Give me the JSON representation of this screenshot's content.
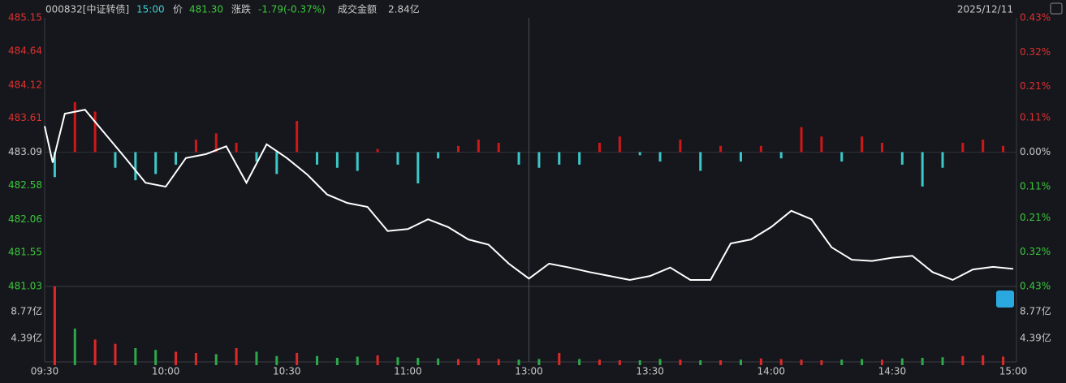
{
  "header": {
    "code": "000832[中证转债]",
    "time": "15:00",
    "price_label": "价",
    "price": "481.30",
    "change_label": "涨跌",
    "change": "-1.79(-0.37%)",
    "amount_label": "成交金额",
    "amount": "2.84亿",
    "date": "2025/12/11"
  },
  "chart_data": {
    "type": "line",
    "x": [
      0,
      2,
      5,
      10,
      15,
      20,
      25,
      30,
      35,
      40,
      45,
      50,
      55,
      60,
      65,
      70,
      75,
      80,
      85,
      90,
      95,
      100,
      105,
      110,
      115,
      120,
      125,
      130,
      135,
      140,
      145,
      150,
      155,
      160,
      165,
      170,
      175,
      180,
      185,
      190,
      195,
      200,
      205,
      210,
      215,
      220,
      225,
      230,
      235,
      240
    ],
    "series": [
      {
        "name": "价",
        "color": "#ffffff",
        "values": [
          483.49,
          482.93,
          483.68,
          483.74,
          483.37,
          483.0,
          482.62,
          482.56,
          483.0,
          483.06,
          483.18,
          482.62,
          483.21,
          483.0,
          482.75,
          482.44,
          482.31,
          482.25,
          481.88,
          481.91,
          482.06,
          481.94,
          481.75,
          481.67,
          481.38,
          481.15,
          481.38,
          481.32,
          481.25,
          481.19,
          481.13,
          481.19,
          481.32,
          481.13,
          481.13,
          481.69,
          481.75,
          481.94,
          482.19,
          482.06,
          481.63,
          481.44,
          481.42,
          481.47,
          481.5,
          481.25,
          481.13,
          481.29,
          481.33,
          481.3
        ]
      }
    ],
    "xlim": [
      0,
      240
    ],
    "xticks": [
      {
        "value": 0,
        "label": "09:30"
      },
      {
        "value": 30,
        "label": "10:00"
      },
      {
        "value": 60,
        "label": "10:30"
      },
      {
        "value": 90,
        "label": "11:00"
      },
      {
        "value": 120,
        "label": "13:00"
      },
      {
        "value": 150,
        "label": "13:30"
      },
      {
        "value": 180,
        "label": "14:00"
      },
      {
        "value": 210,
        "label": "14:30"
      },
      {
        "value": 240,
        "label": "15:00"
      }
    ],
    "ylim": [
      481.03,
      485.15
    ],
    "yticks": [
      485.15,
      484.64,
      484.12,
      483.61,
      483.09,
      482.58,
      482.06,
      481.55,
      481.03
    ],
    "y2lim": [
      -0.43,
      0.43
    ],
    "y2ticks": [
      {
        "value": 0.43,
        "label": "0.43%"
      },
      {
        "value": 0.32,
        "label": "0.32%"
      },
      {
        "value": 0.21,
        "label": "0.21%"
      },
      {
        "value": 0.11,
        "label": "0.11%"
      },
      {
        "value": 0,
        "label": "0.00%"
      },
      {
        "value": -0.11,
        "label": "0.11%"
      },
      {
        "value": -0.21,
        "label": "0.21%"
      },
      {
        "value": -0.32,
        "label": "0.32%"
      },
      {
        "value": -0.43,
        "label": "0.43%"
      }
    ],
    "bars": {
      "axis": "y2",
      "up_color": "#d01818",
      "down_color": "#3cc8c8",
      "values": [
        -0.08,
        0.16,
        0.13,
        -0.05,
        -0.09,
        -0.07,
        -0.04,
        0.04,
        0.06,
        0.03,
        -0.03,
        -0.07,
        0.1,
        -0.04,
        -0.05,
        -0.06,
        0.01,
        -0.04,
        -0.1,
        -0.02,
        0.02,
        0.04,
        0.03,
        -0.04,
        -0.05,
        -0.04,
        -0.04,
        0.03,
        0.05,
        -0.01,
        -0.03,
        0.04,
        -0.06,
        0.02,
        -0.03,
        0.02,
        -0.02,
        0.08,
        0.05,
        -0.03,
        0.05,
        0.03,
        -0.04,
        -0.11,
        -0.05,
        0.03,
        0.04,
        0.02
      ]
    },
    "volume": {
      "ylim": [
        0,
        12.9
      ],
      "yticks": [
        {
          "value": 8.77,
          "label": "8.77亿"
        },
        {
          "value": 4.39,
          "label": "4.39亿"
        }
      ],
      "values": [
        12.9,
        6,
        4.2,
        3.5,
        2.8,
        2.5,
        2.2,
        2.0,
        1.8,
        2.8,
        2.2,
        1.5,
        2.0,
        1.5,
        1.2,
        1.4,
        1.6,
        1.3,
        1.2,
        1.1,
        1.0,
        1.1,
        1.0,
        0.9,
        1.0,
        2.0,
        1.0,
        0.9,
        0.8,
        0.8,
        1.0,
        0.9,
        0.8,
        0.8,
        0.9,
        1.1,
        1.0,
        0.9,
        0.8,
        0.9,
        1.0,
        0.9,
        1.1,
        1.2,
        1.3,
        1.5,
        1.6,
        1.4
      ],
      "colors": [
        "#e02828",
        "#2ea84a",
        "#e02828",
        "#e02828",
        "#2ea84a",
        "#2ea84a",
        "#e02828",
        "#e02828",
        "#2ea84a",
        "#e02828",
        "#2ea84a",
        "#2ea84a",
        "#e02828",
        "#2ea84a",
        "#2ea84a",
        "#2ea84a",
        "#e02828",
        "#2ea84a",
        "#2ea84a",
        "#2ea84a",
        "#e02828",
        "#e02828",
        "#e02828",
        "#2ea84a",
        "#2ea84a",
        "#e02828",
        "#2ea84a",
        "#e02828",
        "#e02828",
        "#2ea84a",
        "#2ea84a",
        "#e02828",
        "#2ea84a",
        "#e02828",
        "#2ea84a",
        "#e02828",
        "#e02828",
        "#e02828",
        "#e02828",
        "#2ea84a",
        "#2ea84a",
        "#e02828",
        "#2ea84a",
        "#2ea84a",
        "#2ea84a",
        "#e02828",
        "#e02828",
        "#e02828"
      ]
    }
  }
}
